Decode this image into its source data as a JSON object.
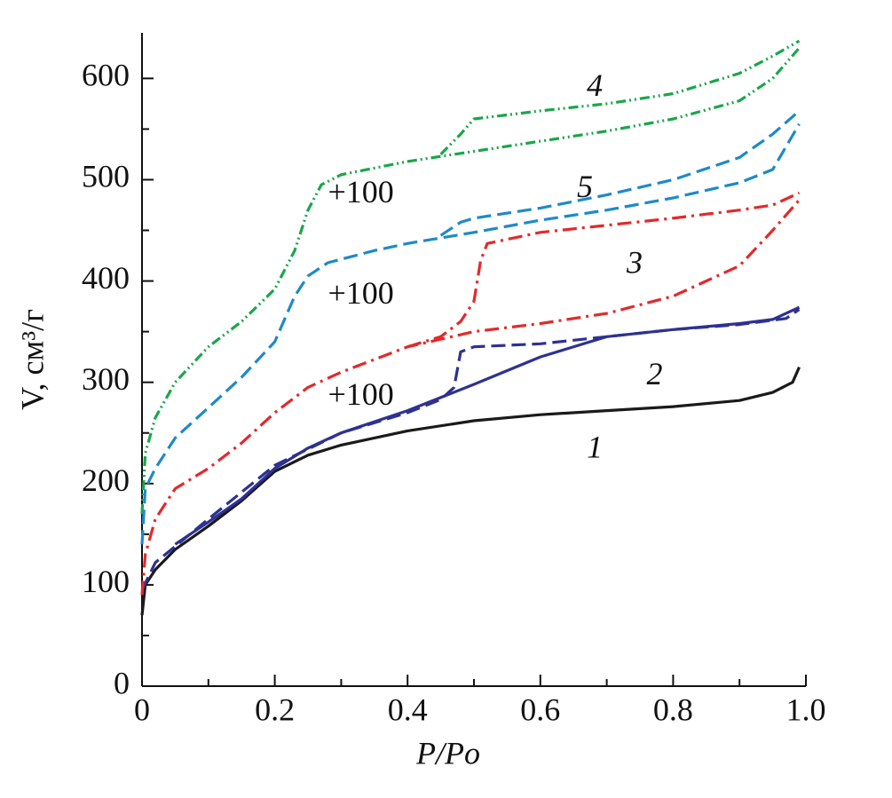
{
  "chart_data": {
    "type": "line",
    "xlabel": "P/Po",
    "ylabel": "V, см³/г",
    "xlim": [
      0,
      1
    ],
    "ylim": [
      0,
      645
    ],
    "xticks": [
      0,
      0.2,
      0.4,
      0.6,
      0.8,
      {
        "value": 1,
        "label": "1.0"
      }
    ],
    "xminorticks": [
      0.1,
      0.3,
      0.5,
      0.7,
      0.9
    ],
    "yticks": [
      0,
      100,
      200,
      300,
      400,
      500,
      600
    ],
    "yminorticks": [
      50,
      150,
      250,
      350,
      450,
      550
    ],
    "grid": false,
    "series": [
      {
        "color": "#1a1a1a",
        "dash": "solid",
        "x": [
          0,
          0.005,
          0.02,
          0.05,
          0.1,
          0.15,
          0.2,
          0.25,
          0.3,
          0.4,
          0.5,
          0.6,
          0.7,
          0.8,
          0.9,
          0.95,
          0.98,
          0.99
        ],
        "values": [
          70,
          100,
          115,
          135,
          158,
          183,
          212,
          228,
          238,
          252,
          262,
          268,
          272,
          276,
          282,
          290,
          300,
          315
        ]
      },
      {
        "color": "#2e3192",
        "dash": "solid",
        "x": [
          0.05,
          0.1,
          0.15,
          0.2,
          0.25,
          0.3,
          0.4,
          0.5,
          0.6,
          0.7,
          0.8,
          0.9,
          0.95,
          0.99
        ],
        "values": [
          140,
          162,
          185,
          215,
          235,
          250,
          272,
          298,
          325,
          345,
          352,
          358,
          362,
          374
        ]
      },
      {
        "color": "#2e3192",
        "dash": "dashed",
        "x": [
          0,
          0.02,
          0.05,
          0.1,
          0.2,
          0.3,
          0.4,
          0.45,
          0.47,
          0.48,
          0.5,
          0.6,
          0.7,
          0.8,
          0.9,
          0.97,
          0.99
        ],
        "values": [
          95,
          122,
          138,
          165,
          218,
          250,
          270,
          283,
          295,
          330,
          335,
          338,
          345,
          352,
          357,
          363,
          372
        ]
      },
      {
        "color": "#e3292b",
        "dash": "dashdot",
        "x": [
          0,
          0.005,
          0.02,
          0.05,
          0.1,
          0.15,
          0.2,
          0.25,
          0.3,
          0.4,
          0.5,
          0.6,
          0.7,
          0.8,
          0.9,
          0.95,
          0.99
        ],
        "values": [
          90,
          130,
          165,
          195,
          215,
          240,
          270,
          295,
          310,
          335,
          350,
          358,
          368,
          385,
          415,
          450,
          480
        ]
      },
      {
        "color": "#e3292b",
        "dash": "dashdot",
        "x": [
          0.4,
          0.45,
          0.48,
          0.5,
          0.51,
          0.52,
          0.6,
          0.8,
          0.9,
          0.95,
          0.99
        ],
        "values": [
          335,
          345,
          360,
          380,
          420,
          437,
          448,
          462,
          470,
          475,
          487
        ]
      },
      {
        "color": "#1aa64a",
        "dash": "dashdotdot",
        "x": [
          0,
          0.005,
          0.02,
          0.05,
          0.1,
          0.15,
          0.2,
          0.23,
          0.25,
          0.27,
          0.3,
          0.4,
          0.5,
          0.6,
          0.7,
          0.8,
          0.9,
          0.95,
          0.99
        ],
        "values": [
          170,
          230,
          265,
          300,
          335,
          360,
          392,
          430,
          470,
          495,
          505,
          518,
          528,
          538,
          548,
          560,
          578,
          600,
          630
        ]
      },
      {
        "color": "#1aa64a",
        "dash": "dashdotdot",
        "x": [
          0.45,
          0.48,
          0.5,
          0.6,
          0.7,
          0.8,
          0.9,
          0.95,
          0.99
        ],
        "values": [
          525,
          545,
          560,
          568,
          575,
          585,
          605,
          622,
          637
        ]
      },
      {
        "color": "#1e8ac8",
        "dash": "dashed",
        "x": [
          0,
          0.005,
          0.02,
          0.05,
          0.1,
          0.15,
          0.2,
          0.23,
          0.25,
          0.28,
          0.35,
          0.4,
          0.5,
          0.6,
          0.7,
          0.8,
          0.9,
          0.95,
          0.99
        ],
        "values": [
          140,
          195,
          215,
          245,
          275,
          305,
          340,
          385,
          405,
          418,
          430,
          437,
          448,
          460,
          470,
          482,
          497,
          510,
          555
        ]
      },
      {
        "color": "#1e8ac8",
        "dash": "dashed",
        "x": [
          0.45,
          0.48,
          0.5,
          0.6,
          0.7,
          0.8,
          0.9,
          0.95,
          0.99
        ],
        "values": [
          445,
          458,
          462,
          472,
          485,
          500,
          522,
          545,
          568
        ]
      }
    ],
    "annotations": [
      {
        "text": "4",
        "x": 0.67,
        "y": 590,
        "color": "#1aa64a",
        "italic": true
      },
      {
        "text": "+100",
        "x": 0.28,
        "y": 485,
        "color": "#1aa64a",
        "italic": false
      },
      {
        "text": "5",
        "x": 0.655,
        "y": 490,
        "color": "#29abe2",
        "italic": true
      },
      {
        "text": "+100",
        "x": 0.28,
        "y": 385,
        "color": "#29abe2",
        "italic": false
      },
      {
        "text": "3",
        "x": 0.73,
        "y": 415,
        "color": "#e3292b",
        "italic": true
      },
      {
        "text": "+100",
        "x": 0.28,
        "y": 285,
        "color": "#e3292b",
        "italic": false
      },
      {
        "text": "2",
        "x": 0.76,
        "y": 305,
        "color": "#2e3192",
        "italic": true
      },
      {
        "text": "1",
        "x": 0.67,
        "y": 233,
        "color": "#1a1a1a",
        "italic": true
      }
    ]
  }
}
